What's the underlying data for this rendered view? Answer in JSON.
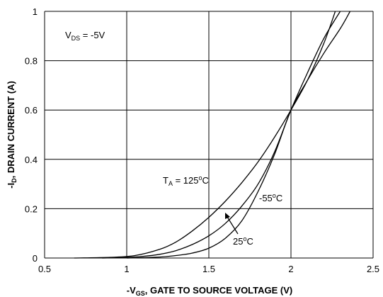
{
  "chart_data": {
    "type": "line",
    "xlabel": {
      "prefix": "-V",
      "sub": "GS",
      "rest": ", GATE TO SOURCE VOLTAGE (V)"
    },
    "ylabel": {
      "prefix": "-I",
      "sub": "D",
      "rest": ", DRAIN CURRENT (A)"
    },
    "xlim": [
      0.5,
      2.5
    ],
    "ylim": [
      0,
      1
    ],
    "xticks": [
      "0.5",
      "1",
      "1.5",
      "2",
      "2.5"
    ],
    "yticks": [
      "0",
      "0.2",
      "0.4",
      "0.6",
      "0.8",
      "1"
    ],
    "grid": true,
    "series": [
      {
        "name": "TA = 125°C",
        "x": [
          0.68,
          0.9,
          1.05,
          1.2,
          1.3,
          1.4,
          1.5,
          1.6,
          1.7,
          1.8,
          1.9,
          2.0,
          2.1,
          2.2,
          2.27
        ],
        "y": [
          0.0,
          0.003,
          0.01,
          0.035,
          0.065,
          0.11,
          0.165,
          0.23,
          0.305,
          0.39,
          0.49,
          0.6,
          0.72,
          0.87,
          1.0
        ]
      },
      {
        "name": "25°C",
        "x": [
          0.85,
          1.0,
          1.1,
          1.2,
          1.3,
          1.4,
          1.5,
          1.6,
          1.7,
          1.8,
          1.9,
          2.0,
          2.1,
          2.2,
          2.3
        ],
        "y": [
          0.0,
          0.003,
          0.007,
          0.015,
          0.03,
          0.055,
          0.09,
          0.14,
          0.21,
          0.3,
          0.43,
          0.6,
          0.75,
          0.89,
          1.0
        ]
      },
      {
        "name": "-55°C",
        "x": [
          1.0,
          1.2,
          1.3,
          1.4,
          1.5,
          1.6,
          1.7,
          1.8,
          1.9,
          2.0,
          2.1,
          2.2,
          2.3,
          2.36
        ],
        "y": [
          0.0,
          0.004,
          0.01,
          0.02,
          0.04,
          0.08,
          0.15,
          0.27,
          0.42,
          0.6,
          0.72,
          0.83,
          0.93,
          1.0
        ]
      }
    ],
    "annotations": {
      "vds": {
        "prefix": "V",
        "sub": "DS",
        "rest": " = -5V"
      },
      "ta": {
        "prefix": "T",
        "sub": "A",
        "rest": " = 125",
        "sup": "o",
        "unit": "C"
      },
      "minus55": {
        "text": "-55",
        "sup": "o",
        "unit": "C"
      },
      "t25": {
        "text": "25",
        "sup": "o",
        "unit": "C"
      }
    }
  }
}
